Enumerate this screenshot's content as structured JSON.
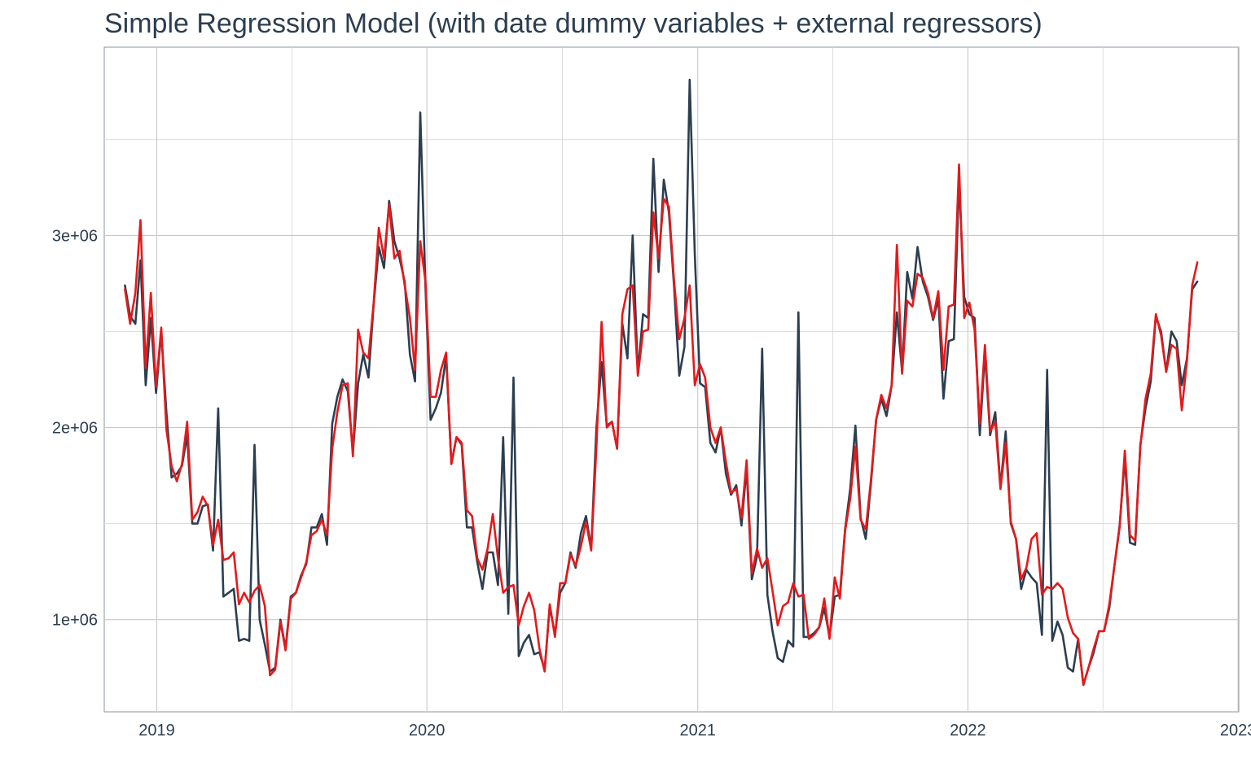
{
  "chart_data": {
    "type": "line",
    "title": "Simple Regression Model (with date dummy variables + external regressors)",
    "xlabel": "",
    "ylabel": "",
    "x_ticks": [
      "2019",
      "2020",
      "2021",
      "2022",
      "2023"
    ],
    "y_ticks": [
      "1e+06",
      "2e+06",
      "3e+06"
    ],
    "ylim": [
      520000,
      3980000
    ],
    "xlim": [
      "2018-10-22",
      "2023-01-02"
    ],
    "grid": true,
    "legend": "none",
    "series": [
      {
        "color": "#2c3e50",
        "x": [
          "2018-11-19",
          "2018-11-26",
          "2018-12-03",
          "2018-12-10",
          "2018-12-17",
          "2018-12-24",
          "2018-12-31",
          "2019-01-07",
          "2019-01-14",
          "2019-01-21",
          "2019-01-28",
          "2019-02-04",
          "2019-02-11",
          "2019-02-18",
          "2019-02-25",
          "2019-03-04",
          "2019-03-11",
          "2019-03-18",
          "2019-03-25",
          "2019-04-01",
          "2019-04-08",
          "2019-04-15",
          "2019-04-22",
          "2019-04-29",
          "2019-05-06",
          "2019-05-13",
          "2019-05-20",
          "2019-05-27",
          "2019-06-03",
          "2019-06-10",
          "2019-06-17",
          "2019-06-24",
          "2019-07-01",
          "2019-07-08",
          "2019-07-15",
          "2019-07-22",
          "2019-07-29",
          "2019-08-05",
          "2019-08-12",
          "2019-08-19",
          "2019-08-26",
          "2019-09-02",
          "2019-09-09",
          "2019-09-16",
          "2019-09-23",
          "2019-09-30",
          "2019-10-07",
          "2019-10-14",
          "2019-10-21",
          "2019-10-28",
          "2019-11-04",
          "2019-11-11",
          "2019-11-18",
          "2019-11-25",
          "2019-12-02",
          "2019-12-09",
          "2019-12-16",
          "2019-12-23",
          "2019-12-30",
          "2020-01-06",
          "2020-01-13",
          "2020-01-20",
          "2020-01-27",
          "2020-02-03",
          "2020-02-10",
          "2020-02-17",
          "2020-02-24",
          "2020-03-02",
          "2020-03-09",
          "2020-03-16",
          "2020-03-23",
          "2020-03-30",
          "2020-04-06",
          "2020-04-13",
          "2020-04-20",
          "2020-04-27",
          "2020-05-04",
          "2020-05-11",
          "2020-05-18",
          "2020-05-25",
          "2020-06-01",
          "2020-06-08",
          "2020-06-15",
          "2020-06-22",
          "2020-06-29",
          "2020-07-06",
          "2020-07-13",
          "2020-07-20",
          "2020-07-27",
          "2020-08-03",
          "2020-08-10",
          "2020-08-17",
          "2020-08-24",
          "2020-08-31",
          "2020-09-07",
          "2020-09-14",
          "2020-09-21",
          "2020-09-28",
          "2020-10-05",
          "2020-10-12",
          "2020-10-19",
          "2020-10-26",
          "2020-11-02",
          "2020-11-09",
          "2020-11-16",
          "2020-11-23",
          "2020-11-30",
          "2020-12-07",
          "2020-12-14",
          "2020-12-21",
          "2020-12-28",
          "2021-01-04",
          "2021-01-11",
          "2021-01-18",
          "2021-01-25",
          "2021-02-01",
          "2021-02-08",
          "2021-02-15",
          "2021-02-22",
          "2021-03-01",
          "2021-03-08",
          "2021-03-15",
          "2021-03-22",
          "2021-03-29",
          "2021-04-05",
          "2021-04-12",
          "2021-04-19",
          "2021-04-26",
          "2021-05-03",
          "2021-05-10",
          "2021-05-17",
          "2021-05-24",
          "2021-05-31",
          "2021-06-07",
          "2021-06-14",
          "2021-06-21",
          "2021-06-28",
          "2021-07-05",
          "2021-07-12",
          "2021-07-19",
          "2021-07-26",
          "2021-08-02",
          "2021-08-09",
          "2021-08-16",
          "2021-08-23",
          "2021-08-30",
          "2021-09-06",
          "2021-09-13",
          "2021-09-20",
          "2021-09-27",
          "2021-10-04",
          "2021-10-11",
          "2021-10-18",
          "2021-10-25",
          "2021-11-01",
          "2021-11-08",
          "2021-11-15",
          "2021-11-22",
          "2021-11-29",
          "2021-12-06",
          "2021-12-13",
          "2021-12-20",
          "2021-12-27",
          "2022-01-03",
          "2022-01-10",
          "2022-01-17",
          "2022-01-24",
          "2022-01-31",
          "2022-02-07",
          "2022-02-14",
          "2022-02-21",
          "2022-02-28",
          "2022-03-07",
          "2022-03-14",
          "2022-03-21",
          "2022-03-28",
          "2022-04-04",
          "2022-04-11",
          "2022-04-18",
          "2022-04-25",
          "2022-05-02",
          "2022-05-09",
          "2022-05-16",
          "2022-05-23",
          "2022-05-30",
          "2022-06-06",
          "2022-06-13",
          "2022-06-20",
          "2022-06-27",
          "2022-07-04",
          "2022-07-11",
          "2022-07-18",
          "2022-07-25",
          "2022-08-01",
          "2022-08-08",
          "2022-08-15",
          "2022-08-22",
          "2022-08-29",
          "2022-09-05",
          "2022-09-12",
          "2022-09-19",
          "2022-09-26",
          "2022-10-03",
          "2022-10-10",
          "2022-10-17",
          "2022-10-24",
          "2022-10-31",
          "2022-11-07"
        ],
        "y": [
          2740000,
          2580000,
          2540000,
          2870000,
          2220000,
          2570000,
          2180000,
          2500000,
          2080000,
          1740000,
          1760000,
          1800000,
          1960000,
          1500000,
          1500000,
          1590000,
          1600000,
          1360000,
          2100000,
          1120000,
          1140000,
          1160000,
          890000,
          900000,
          890000,
          1910000,
          1000000,
          870000,
          730000,
          750000,
          1000000,
          850000,
          1120000,
          1140000,
          1230000,
          1290000,
          1480000,
          1480000,
          1550000,
          1390000,
          2020000,
          2160000,
          2250000,
          2190000,
          1870000,
          2230000,
          2380000,
          2260000,
          2640000,
          2940000,
          2830000,
          3180000,
          2970000,
          2880000,
          2760000,
          2380000,
          2240000,
          3640000,
          2730000,
          2040000,
          2100000,
          2180000,
          2370000,
          1810000,
          1950000,
          1910000,
          1480000,
          1480000,
          1300000,
          1160000,
          1350000,
          1350000,
          1180000,
          1950000,
          1030000,
          2260000,
          810000,
          880000,
          920000,
          820000,
          830000,
          740000,
          1070000,
          920000,
          1140000,
          1190000,
          1350000,
          1270000,
          1450000,
          1540000,
          1370000,
          2000000,
          2340000,
          2010000,
          2030000,
          1890000,
          2540000,
          2360000,
          3000000,
          2280000,
          2590000,
          2570000,
          3400000,
          2810000,
          3290000,
          3120000,
          2730000,
          2270000,
          2420000,
          3810000,
          2900000,
          2230000,
          2210000,
          1920000,
          1870000,
          2000000,
          1760000,
          1650000,
          1700000,
          1490000,
          1790000,
          1210000,
          1330000,
          2410000,
          1130000,
          940000,
          800000,
          780000,
          890000,
          860000,
          2600000,
          910000,
          910000,
          930000,
          960000,
          1060000,
          910000,
          1120000,
          1130000,
          1470000,
          1680000,
          2010000,
          1530000,
          1420000,
          1710000,
          2040000,
          2150000,
          2060000,
          2220000,
          2600000,
          2290000,
          2810000,
          2670000,
          2940000,
          2760000,
          2680000,
          2560000,
          2670000,
          2150000,
          2450000,
          2460000,
          3290000,
          2680000,
          2590000,
          2570000,
          1960000,
          2390000,
          1960000,
          2080000,
          1690000,
          1980000,
          1500000,
          1420000,
          1160000,
          1260000,
          1220000,
          1190000,
          920000,
          2300000,
          890000,
          990000,
          920000,
          750000,
          730000,
          900000,
          660000,
          750000,
          830000,
          940000,
          940000,
          1060000,
          1280000,
          1490000,
          1840000,
          1400000,
          1390000,
          1910000,
          2100000,
          2240000,
          2580000,
          2500000,
          2290000,
          2500000,
          2450000,
          2220000,
          2360000,
          2720000,
          2760000
        ]
      },
      {
        "color": "#e31a1c",
        "x": [
          "2018-11-19",
          "2018-11-26",
          "2018-12-03",
          "2018-12-10",
          "2018-12-17",
          "2018-12-24",
          "2018-12-31",
          "2019-01-07",
          "2019-01-14",
          "2019-01-21",
          "2019-01-28",
          "2019-02-04",
          "2019-02-11",
          "2019-02-18",
          "2019-02-25",
          "2019-03-04",
          "2019-03-11",
          "2019-03-18",
          "2019-03-25",
          "2019-04-01",
          "2019-04-08",
          "2019-04-15",
          "2019-04-22",
          "2019-04-29",
          "2019-05-06",
          "2019-05-13",
          "2019-05-20",
          "2019-05-27",
          "2019-06-03",
          "2019-06-10",
          "2019-06-17",
          "2019-06-24",
          "2019-07-01",
          "2019-07-08",
          "2019-07-15",
          "2019-07-22",
          "2019-07-29",
          "2019-08-05",
          "2019-08-12",
          "2019-08-19",
          "2019-08-26",
          "2019-09-02",
          "2019-09-09",
          "2019-09-16",
          "2019-09-23",
          "2019-09-30",
          "2019-10-07",
          "2019-10-14",
          "2019-10-21",
          "2019-10-28",
          "2019-11-04",
          "2019-11-11",
          "2019-11-18",
          "2019-11-25",
          "2019-12-02",
          "2019-12-09",
          "2019-12-16",
          "2019-12-23",
          "2019-12-30",
          "2020-01-06",
          "2020-01-13",
          "2020-01-20",
          "2020-01-27",
          "2020-02-03",
          "2020-02-10",
          "2020-02-17",
          "2020-02-24",
          "2020-03-02",
          "2020-03-09",
          "2020-03-16",
          "2020-03-23",
          "2020-03-30",
          "2020-04-06",
          "2020-04-13",
          "2020-04-20",
          "2020-04-27",
          "2020-05-04",
          "2020-05-11",
          "2020-05-18",
          "2020-05-25",
          "2020-06-01",
          "2020-06-08",
          "2020-06-15",
          "2020-06-22",
          "2020-06-29",
          "2020-07-06",
          "2020-07-13",
          "2020-07-20",
          "2020-07-27",
          "2020-08-03",
          "2020-08-10",
          "2020-08-17",
          "2020-08-24",
          "2020-08-31",
          "2020-09-07",
          "2020-09-14",
          "2020-09-21",
          "2020-09-28",
          "2020-10-05",
          "2020-10-12",
          "2020-10-19",
          "2020-10-26",
          "2020-11-02",
          "2020-11-09",
          "2020-11-16",
          "2020-11-23",
          "2020-11-30",
          "2020-12-07",
          "2020-12-14",
          "2020-12-21",
          "2020-12-28",
          "2021-01-04",
          "2021-01-11",
          "2021-01-18",
          "2021-01-25",
          "2021-02-01",
          "2021-02-08",
          "2021-02-15",
          "2021-02-22",
          "2021-03-01",
          "2021-03-08",
          "2021-03-15",
          "2021-03-22",
          "2021-03-29",
          "2021-04-05",
          "2021-04-12",
          "2021-04-19",
          "2021-04-26",
          "2021-05-03",
          "2021-05-10",
          "2021-05-17",
          "2021-05-24",
          "2021-05-31",
          "2021-06-07",
          "2021-06-14",
          "2021-06-21",
          "2021-06-28",
          "2021-07-05",
          "2021-07-12",
          "2021-07-19",
          "2021-07-26",
          "2021-08-02",
          "2021-08-09",
          "2021-08-16",
          "2021-08-23",
          "2021-08-30",
          "2021-09-06",
          "2021-09-13",
          "2021-09-20",
          "2021-09-27",
          "2021-10-04",
          "2021-10-11",
          "2021-10-18",
          "2021-10-25",
          "2021-11-01",
          "2021-11-08",
          "2021-11-15",
          "2021-11-22",
          "2021-11-29",
          "2021-12-06",
          "2021-12-13",
          "2021-12-20",
          "2021-12-27",
          "2022-01-03",
          "2022-01-10",
          "2022-01-17",
          "2022-01-24",
          "2022-01-31",
          "2022-02-07",
          "2022-02-14",
          "2022-02-21",
          "2022-02-28",
          "2022-03-07",
          "2022-03-14",
          "2022-03-21",
          "2022-03-28",
          "2022-04-04",
          "2022-04-11",
          "2022-04-18",
          "2022-04-25",
          "2022-05-02",
          "2022-05-09",
          "2022-05-16",
          "2022-05-23",
          "2022-05-30",
          "2022-06-06",
          "2022-06-13",
          "2022-06-20",
          "2022-06-27",
          "2022-07-04",
          "2022-07-11",
          "2022-07-18",
          "2022-07-25",
          "2022-08-01",
          "2022-08-08",
          "2022-08-15",
          "2022-08-22",
          "2022-08-29",
          "2022-09-05",
          "2022-09-12",
          "2022-09-19",
          "2022-09-26",
          "2022-10-03",
          "2022-10-10",
          "2022-10-17",
          "2022-10-24",
          "2022-10-31",
          "2022-11-07"
        ],
        "y": [
          2720000,
          2540000,
          2700000,
          3080000,
          2310000,
          2700000,
          2210000,
          2520000,
          1990000,
          1800000,
          1720000,
          1810000,
          2030000,
          1520000,
          1560000,
          1640000,
          1590000,
          1390000,
          1520000,
          1310000,
          1320000,
          1350000,
          1080000,
          1140000,
          1090000,
          1150000,
          1180000,
          1070000,
          710000,
          740000,
          990000,
          840000,
          1110000,
          1140000,
          1220000,
          1300000,
          1440000,
          1460000,
          1520000,
          1440000,
          1890000,
          2080000,
          2220000,
          2230000,
          1850000,
          2510000,
          2390000,
          2360000,
          2650000,
          3040000,
          2880000,
          3160000,
          2880000,
          2920000,
          2740000,
          2570000,
          2300000,
          2970000,
          2760000,
          2160000,
          2160000,
          2300000,
          2390000,
          1810000,
          1950000,
          1920000,
          1570000,
          1540000,
          1320000,
          1260000,
          1370000,
          1550000,
          1320000,
          1140000,
          1170000,
          1180000,
          970000,
          1070000,
          1140000,
          1050000,
          850000,
          730000,
          1080000,
          910000,
          1190000,
          1190000,
          1340000,
          1280000,
          1380000,
          1510000,
          1360000,
          1900000,
          2550000,
          2000000,
          2030000,
          1890000,
          2590000,
          2720000,
          2740000,
          2270000,
          2500000,
          2510000,
          3120000,
          2880000,
          3190000,
          3150000,
          2760000,
          2460000,
          2570000,
          2740000,
          2220000,
          2330000,
          2260000,
          2000000,
          1920000,
          2000000,
          1820000,
          1660000,
          1680000,
          1530000,
          1830000,
          1240000,
          1370000,
          1270000,
          1320000,
          1150000,
          970000,
          1070000,
          1090000,
          1190000,
          1120000,
          1130000,
          900000,
          920000,
          960000,
          1110000,
          900000,
          1220000,
          1110000,
          1460000,
          1630000,
          1900000,
          1520000,
          1470000,
          1730000,
          2040000,
          2170000,
          2100000,
          2220000,
          2950000,
          2280000,
          2660000,
          2630000,
          2800000,
          2780000,
          2700000,
          2570000,
          2710000,
          2300000,
          2630000,
          2640000,
          3370000,
          2570000,
          2650000,
          2510000,
          2020000,
          2430000,
          1980000,
          2030000,
          1680000,
          1920000,
          1510000,
          1420000,
          1210000,
          1270000,
          1420000,
          1450000,
          1130000,
          1170000,
          1160000,
          1190000,
          1160000,
          1010000,
          930000,
          900000,
          660000,
          750000,
          850000,
          940000,
          940000,
          1080000,
          1280000,
          1480000,
          1880000,
          1440000,
          1410000,
          1900000,
          2150000,
          2280000,
          2590000,
          2480000,
          2290000,
          2430000,
          2410000,
          2090000,
          2350000,
          2740000,
          2860000
        ]
      }
    ]
  }
}
